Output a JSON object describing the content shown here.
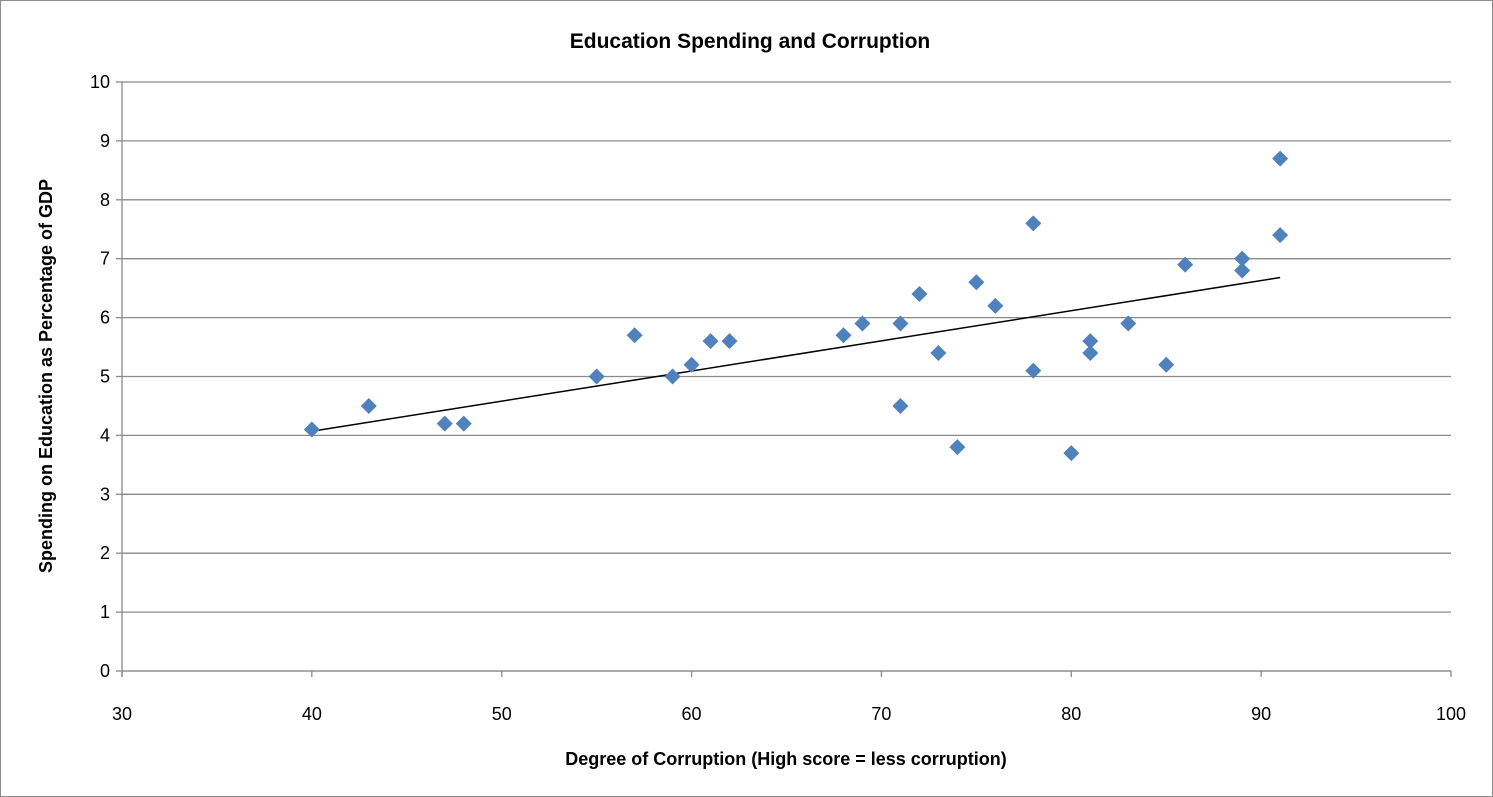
{
  "chart_data": {
    "type": "scatter",
    "title": "Education Spending and Corruption",
    "xlabel": "Degree of Corruption (High score = less corruption)",
    "ylabel": "Spending on Education as Percentage of GDP",
    "xlim": [
      30,
      100
    ],
    "ylim": [
      0,
      10
    ],
    "xticks": [
      30,
      40,
      50,
      60,
      70,
      80,
      90,
      100
    ],
    "yticks": [
      0,
      1,
      2,
      3,
      4,
      5,
      6,
      7,
      8,
      9,
      10
    ],
    "grid": "horizontal",
    "marker": "diamond",
    "color": "#4F81BD",
    "points": [
      [
        40,
        4.1
      ],
      [
        43,
        4.5
      ],
      [
        47,
        4.2
      ],
      [
        48,
        4.2
      ],
      [
        55,
        5.0
      ],
      [
        57,
        5.7
      ],
      [
        59,
        5.0
      ],
      [
        60,
        5.2
      ],
      [
        61,
        5.6
      ],
      [
        62,
        5.6
      ],
      [
        68,
        5.7
      ],
      [
        69,
        5.9
      ],
      [
        71,
        5.9
      ],
      [
        71,
        4.5
      ],
      [
        72,
        6.4
      ],
      [
        73,
        5.4
      ],
      [
        74,
        3.8
      ],
      [
        75,
        6.6
      ],
      [
        76,
        6.2
      ],
      [
        78,
        7.6
      ],
      [
        78,
        5.1
      ],
      [
        80,
        3.7
      ],
      [
        81,
        5.6
      ],
      [
        81,
        5.4
      ],
      [
        83,
        5.9
      ],
      [
        85,
        5.2
      ],
      [
        86,
        6.9
      ],
      [
        89,
        7.0
      ],
      [
        89,
        6.8
      ],
      [
        91,
        8.7
      ],
      [
        91,
        7.4
      ]
    ],
    "trendline": {
      "type": "linear",
      "from": [
        40,
        4.07
      ],
      "to": [
        91,
        6.68
      ]
    }
  }
}
